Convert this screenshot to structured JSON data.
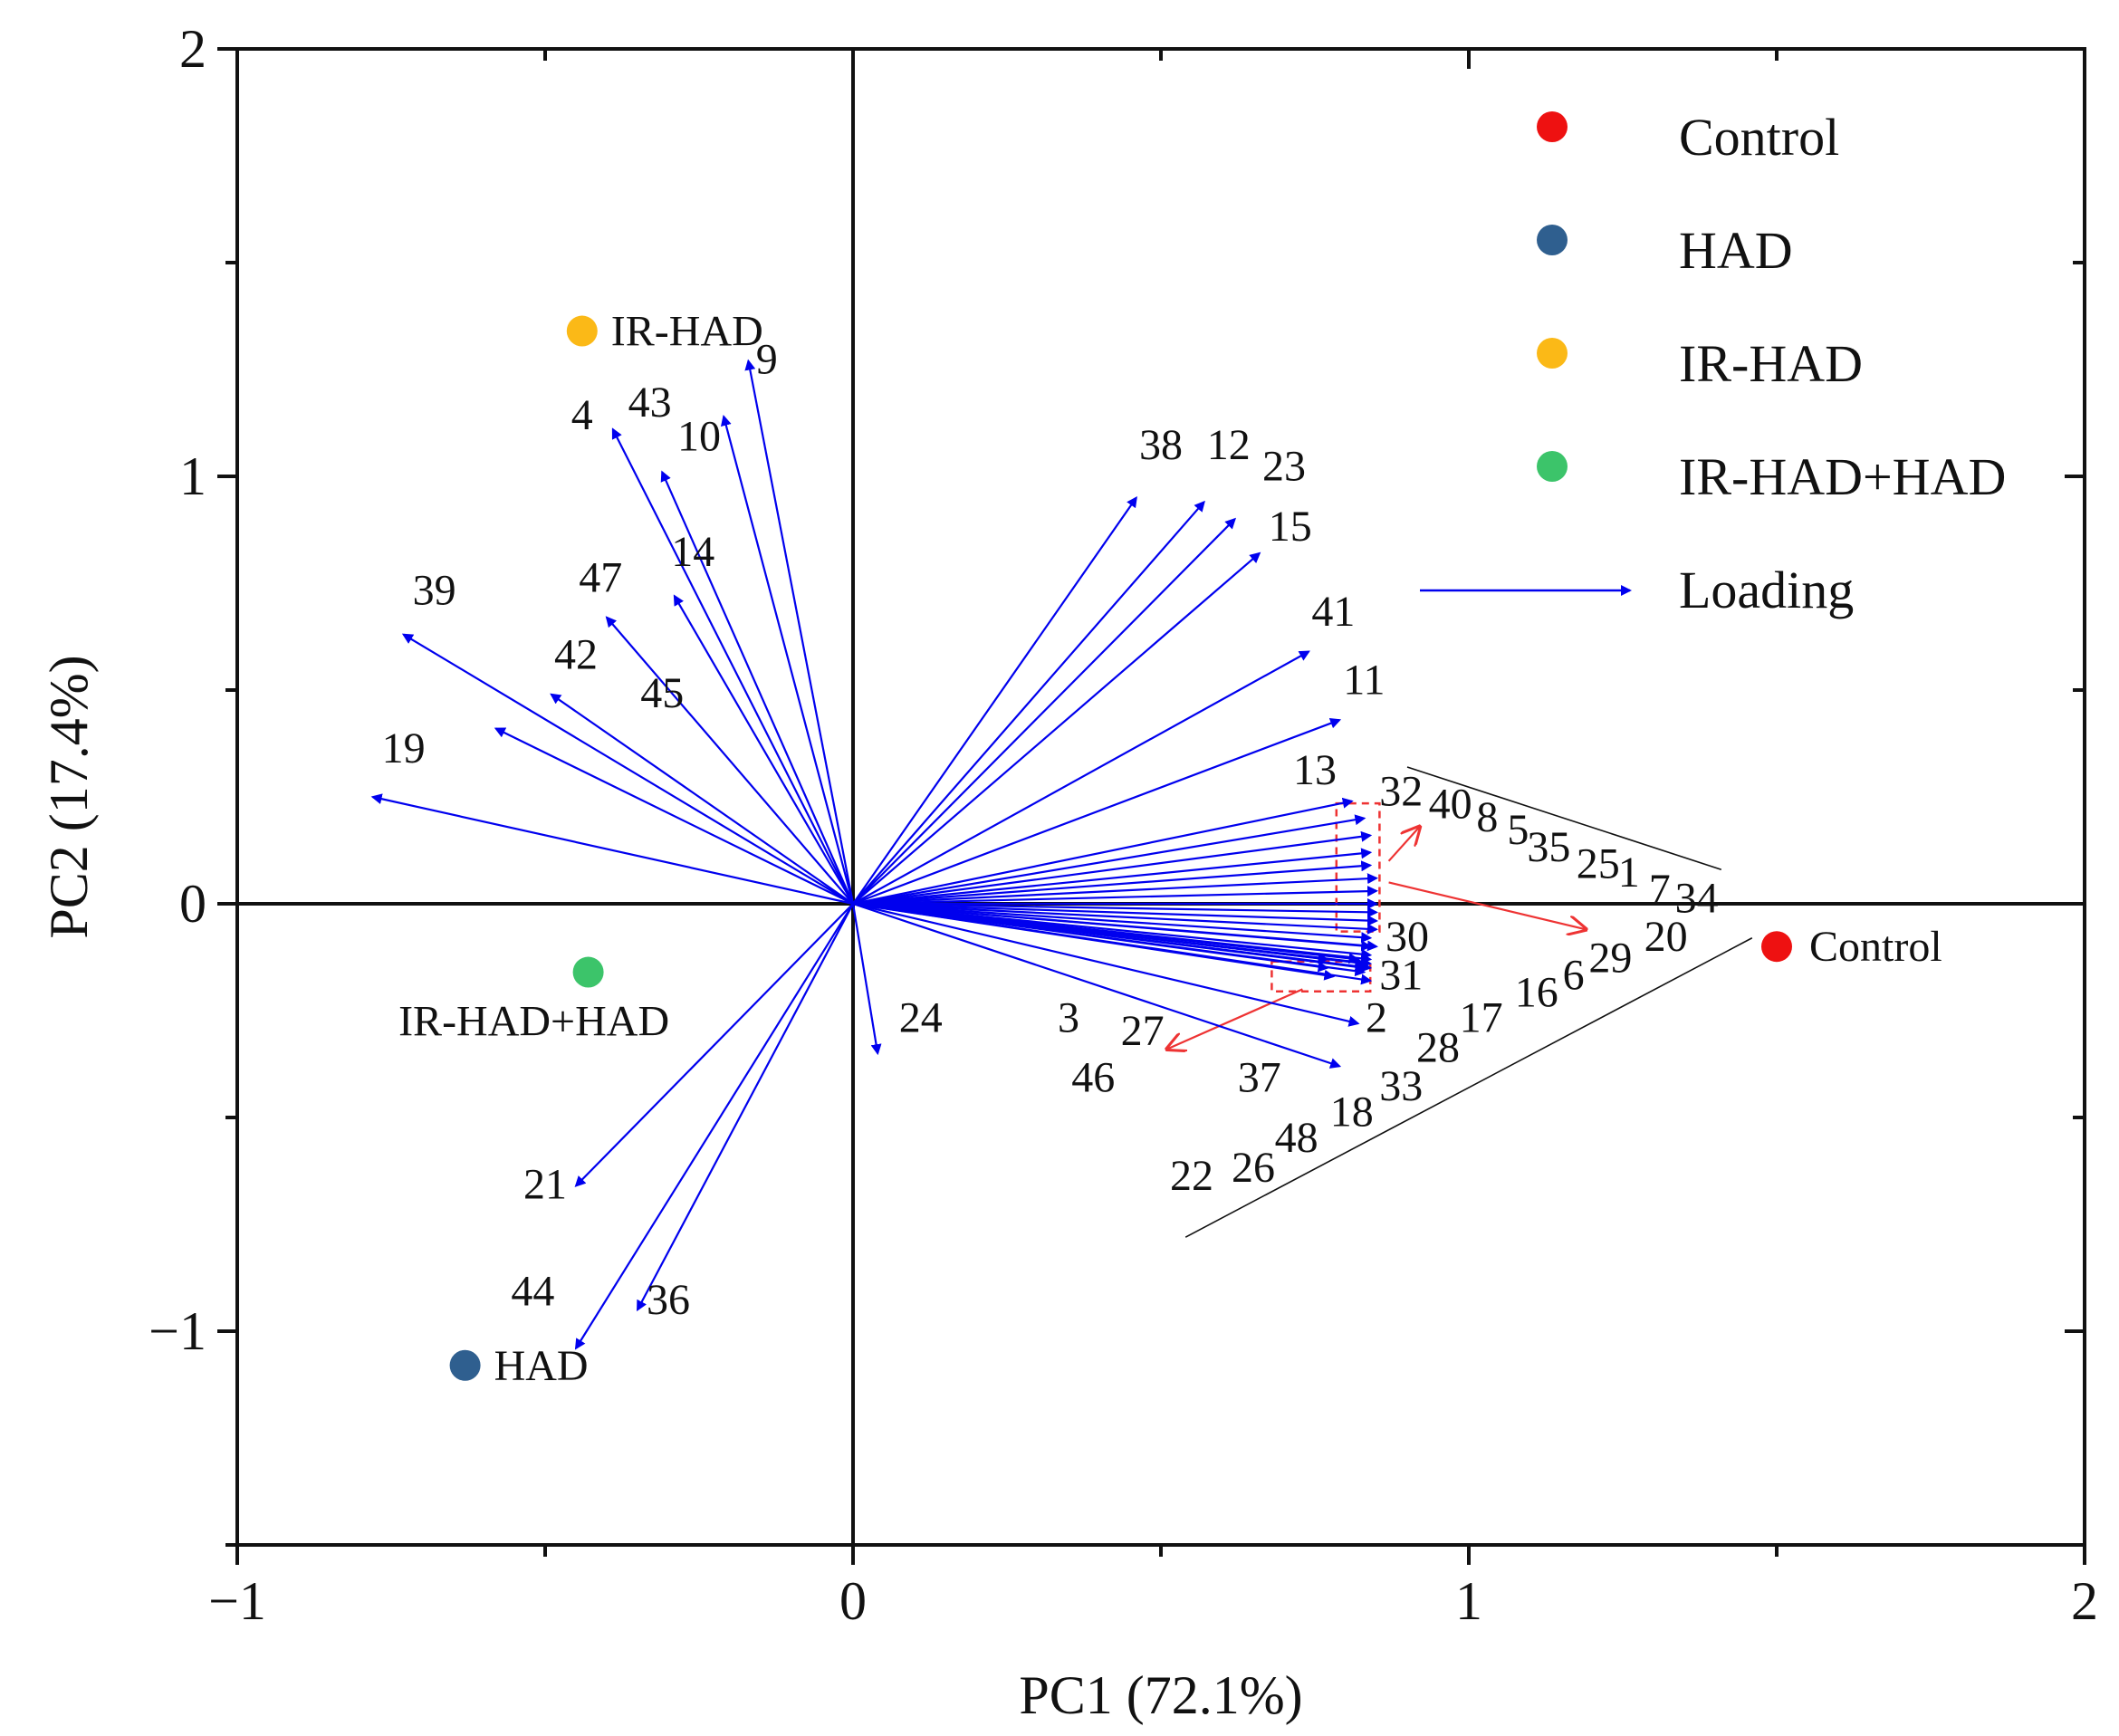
{
  "chart_data": {
    "type": "biplot",
    "xlabel": "PC1 (72.1%)",
    "ylabel": "PC2 (17.4%)",
    "xlim": [
      -1,
      2
    ],
    "ylim": [
      -1.5,
      2
    ],
    "xticks": [
      {
        "value": -1,
        "label": "−1"
      },
      {
        "value": 0,
        "label": "0"
      },
      {
        "value": 1,
        "label": "1"
      },
      {
        "value": 2,
        "label": "2"
      }
    ],
    "yticks": [
      {
        "value": -1,
        "label": "−1"
      },
      {
        "value": 0,
        "label": "0"
      },
      {
        "value": 1,
        "label": "1"
      },
      {
        "value": 2,
        "label": "2"
      }
    ],
    "arrow_color": "#0000ee",
    "highlight_color": "#ee3333",
    "samples": [
      {
        "name": "Control",
        "x": 1.5,
        "y": -0.1,
        "color": "#ee1111"
      },
      {
        "name": "HAD",
        "x": -0.63,
        "y": -1.08,
        "color": "#2f5f8f"
      },
      {
        "name": "IR-HAD",
        "x": -0.44,
        "y": 1.34,
        "color": "#fbb917"
      },
      {
        "name": "IR-HAD+HAD",
        "x": -0.43,
        "y": -0.16,
        "color": "#3cc46a"
      }
    ],
    "legend": [
      {
        "label": "Control",
        "color": "#ee1111",
        "kind": "point"
      },
      {
        "label": "HAD",
        "color": "#2f5f8f",
        "kind": "point"
      },
      {
        "label": "IR-HAD",
        "color": "#fbb917",
        "kind": "point"
      },
      {
        "label": "IR-HAD+HAD",
        "color": "#3cc46a",
        "kind": "point"
      },
      {
        "label": "Loading",
        "color": "#0000ee",
        "kind": "arrow"
      }
    ],
    "loadings": [
      {
        "id": "9",
        "x": -0.17,
        "y": 1.27
      },
      {
        "id": "10",
        "x": -0.21,
        "y": 1.14
      },
      {
        "id": "43",
        "x": -0.31,
        "y": 1.01
      },
      {
        "id": "4",
        "x": -0.39,
        "y": 1.11
      },
      {
        "id": "14",
        "x": -0.29,
        "y": 0.72
      },
      {
        "id": "47",
        "x": -0.4,
        "y": 0.67
      },
      {
        "id": "39",
        "x": -0.73,
        "y": 0.63
      },
      {
        "id": "42",
        "x": -0.49,
        "y": 0.49
      },
      {
        "id": "45",
        "x": -0.58,
        "y": 0.41
      },
      {
        "id": "19",
        "x": -0.78,
        "y": 0.25
      },
      {
        "id": "21",
        "x": -0.45,
        "y": -0.66
      },
      {
        "id": "44",
        "x": -0.45,
        "y": -1.04
      },
      {
        "id": "36",
        "x": -0.35,
        "y": -0.95
      },
      {
        "id": "24",
        "x": 0.04,
        "y": -0.35
      },
      {
        "id": "38",
        "x": 0.46,
        "y": 0.95
      },
      {
        "id": "12",
        "x": 0.57,
        "y": 0.94
      },
      {
        "id": "23",
        "x": 0.62,
        "y": 0.9
      },
      {
        "id": "15",
        "x": 0.66,
        "y": 0.82
      },
      {
        "id": "41",
        "x": 0.74,
        "y": 0.59
      },
      {
        "id": "11",
        "x": 0.79,
        "y": 0.43
      },
      {
        "id": "13",
        "x": 0.81,
        "y": 0.24
      },
      {
        "id": "32",
        "x": 0.83,
        "y": 0.2
      },
      {
        "id": "40",
        "x": 0.84,
        "y": 0.16
      },
      {
        "id": "8",
        "x": 0.84,
        "y": 0.12
      },
      {
        "id": "5",
        "x": 0.84,
        "y": 0.09
      },
      {
        "id": "35",
        "x": 0.85,
        "y": 0.06
      },
      {
        "id": "25",
        "x": 0.85,
        "y": 0.03
      },
      {
        "id": "1",
        "x": 0.85,
        "y": 0.0
      },
      {
        "id": "7",
        "x": 0.85,
        "y": -0.02
      },
      {
        "id": "34",
        "x": 0.85,
        "y": -0.04
      },
      {
        "id": "20",
        "x": 0.85,
        "y": -0.06
      },
      {
        "id": "29",
        "x": 0.84,
        "y": -0.08
      },
      {
        "id": "6",
        "x": 0.84,
        "y": -0.1
      },
      {
        "id": "16",
        "x": 0.84,
        "y": -0.12
      },
      {
        "id": "17",
        "x": 0.84,
        "y": -0.13
      },
      {
        "id": "28",
        "x": 0.84,
        "y": -0.14
      },
      {
        "id": "33",
        "x": 0.84,
        "y": -0.15
      },
      {
        "id": "18",
        "x": 0.83,
        "y": -0.16
      },
      {
        "id": "48",
        "x": 0.83,
        "y": -0.15
      },
      {
        "id": "26",
        "x": 0.83,
        "y": -0.14
      },
      {
        "id": "22",
        "x": 0.82,
        "y": -0.13
      },
      {
        "id": "30",
        "x": 0.85,
        "y": -0.1
      },
      {
        "id": "31",
        "x": 0.84,
        "y": -0.18
      },
      {
        "id": "3",
        "x": 0.77,
        "y": -0.13
      },
      {
        "id": "46",
        "x": 0.77,
        "y": -0.15
      },
      {
        "id": "27",
        "x": 0.78,
        "y": -0.17
      },
      {
        "id": "2",
        "x": 0.82,
        "y": -0.28
      },
      {
        "id": "37",
        "x": 0.79,
        "y": -0.38
      }
    ],
    "labels": [
      {
        "text": "9",
        "x": -0.14,
        "y": 1.24
      },
      {
        "text": "10",
        "x": -0.25,
        "y": 1.06
      },
      {
        "text": "43",
        "x": -0.33,
        "y": 1.14
      },
      {
        "text": "4",
        "x": -0.44,
        "y": 1.11
      },
      {
        "text": "14",
        "x": -0.26,
        "y": 0.79
      },
      {
        "text": "47",
        "x": -0.41,
        "y": 0.73
      },
      {
        "text": "39",
        "x": -0.68,
        "y": 0.7
      },
      {
        "text": "42",
        "x": -0.45,
        "y": 0.55
      },
      {
        "text": "45",
        "x": -0.31,
        "y": 0.46
      },
      {
        "text": "19",
        "x": -0.73,
        "y": 0.33
      },
      {
        "text": "21",
        "x": -0.5,
        "y": -0.69
      },
      {
        "text": "44",
        "x": -0.52,
        "y": -0.94
      },
      {
        "text": "36",
        "x": -0.3,
        "y": -0.96
      },
      {
        "text": "24",
        "x": 0.11,
        "y": -0.3
      },
      {
        "text": "38",
        "x": 0.5,
        "y": 1.04
      },
      {
        "text": "12",
        "x": 0.61,
        "y": 1.04
      },
      {
        "text": "23",
        "x": 0.7,
        "y": 0.99
      },
      {
        "text": "15",
        "x": 0.71,
        "y": 0.85
      },
      {
        "text": "41",
        "x": 0.78,
        "y": 0.65
      },
      {
        "text": "11",
        "x": 0.83,
        "y": 0.49
      },
      {
        "text": "13",
        "x": 0.75,
        "y": 0.28
      },
      {
        "text": "32",
        "x": 0.89,
        "y": 0.23
      },
      {
        "text": "40",
        "x": 0.97,
        "y": 0.2
      },
      {
        "text": "8",
        "x": 1.03,
        "y": 0.17
      },
      {
        "text": "5",
        "x": 1.08,
        "y": 0.14
      },
      {
        "text": "35",
        "x": 1.13,
        "y": 0.1
      },
      {
        "text": "25",
        "x": 1.21,
        "y": 0.06
      },
      {
        "text": "1",
        "x": 1.26,
        "y": 0.04
      },
      {
        "text": "7",
        "x": 1.31,
        "y": 0.0
      },
      {
        "text": "34",
        "x": 1.37,
        "y": -0.02
      },
      {
        "text": "20",
        "x": 1.32,
        "y": -0.11
      },
      {
        "text": "29",
        "x": 1.23,
        "y": -0.16
      },
      {
        "text": "6",
        "x": 1.17,
        "y": -0.2
      },
      {
        "text": "16",
        "x": 1.11,
        "y": -0.24
      },
      {
        "text": "17",
        "x": 1.02,
        "y": -0.3
      },
      {
        "text": "28",
        "x": 0.95,
        "y": -0.37
      },
      {
        "text": "33",
        "x": 0.89,
        "y": -0.46
      },
      {
        "text": "18",
        "x": 0.81,
        "y": -0.52
      },
      {
        "text": "48",
        "x": 0.72,
        "y": -0.58
      },
      {
        "text": "26",
        "x": 0.65,
        "y": -0.65
      },
      {
        "text": "22",
        "x": 0.55,
        "y": -0.67
      },
      {
        "text": "30",
        "x": 0.9,
        "y": -0.11
      },
      {
        "text": "31",
        "x": 0.89,
        "y": -0.2
      },
      {
        "text": "2",
        "x": 0.85,
        "y": -0.3
      },
      {
        "text": "3",
        "x": 0.35,
        "y": -0.3
      },
      {
        "text": "27",
        "x": 0.47,
        "y": -0.33
      },
      {
        "text": "46",
        "x": 0.39,
        "y": -0.44
      },
      {
        "text": "37",
        "x": 0.66,
        "y": -0.44
      }
    ],
    "brackets": [
      {
        "from": [
          0.9,
          0.32
        ],
        "to": [
          1.41,
          0.08
        ]
      },
      {
        "from": [
          0.54,
          -0.78
        ],
        "to": [
          1.46,
          -0.08
        ]
      }
    ],
    "highlight_boxes": [
      {
        "x1": 0.785,
        "y1": 0.235,
        "x2": 0.855,
        "y2": -0.065
      },
      {
        "x1": 0.68,
        "y1": -0.135,
        "x2": 0.84,
        "y2": -0.205
      }
    ],
    "highlight_arrows": [
      {
        "from": [
          0.87,
          0.05
        ],
        "to": [
          1.19,
          -0.06
        ]
      },
      {
        "from": [
          0.87,
          0.1
        ],
        "to": [
          0.92,
          0.18
        ]
      },
      {
        "from": [
          0.73,
          -0.2
        ],
        "to": [
          0.51,
          -0.34
        ]
      }
    ]
  }
}
